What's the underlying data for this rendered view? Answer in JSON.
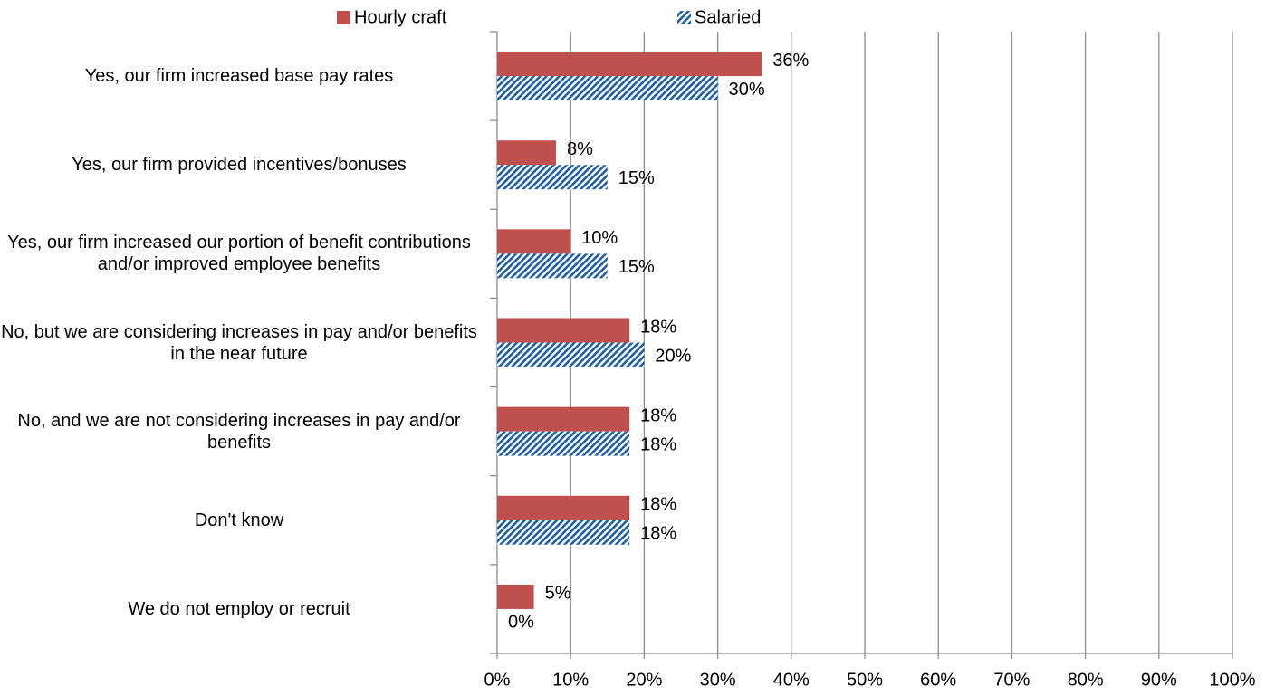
{
  "chart_data": {
    "type": "bar",
    "orientation": "horizontal",
    "categories": [
      "Yes, our firm increased base pay rates",
      "Yes, our firm provided incentives/bonuses",
      "Yes, our firm increased our portion of benefit contributions and/or improved employee benefits",
      "No, but we are considering increases in pay and/or benefits in the near future",
      "No, and we are not considering increases in pay and/or benefits",
      "Don't know",
      "We do not employ or recruit"
    ],
    "series": [
      {
        "name": "Hourly craft",
        "color": "#c0504d",
        "pattern": "solid",
        "values": [
          36,
          8,
          10,
          18,
          18,
          18,
          5
        ],
        "value_labels": [
          "36%",
          "8%",
          "10%",
          "18%",
          "18%",
          "18%",
          "5%"
        ]
      },
      {
        "name": "Salaried",
        "color": "#1f5fa8",
        "pattern": "hatch",
        "values": [
          30,
          15,
          15,
          20,
          18,
          18,
          0
        ],
        "value_labels": [
          "30%",
          "15%",
          "15%",
          "20%",
          "18%",
          "18%",
          "0%"
        ]
      }
    ],
    "xlim": [
      0,
      100
    ],
    "xticks": [
      {
        "value": 0,
        "label": "0%"
      },
      {
        "value": 10,
        "label": "10%"
      },
      {
        "value": 20,
        "label": "20%"
      },
      {
        "value": 30,
        "label": "30%"
      },
      {
        "value": 40,
        "label": "40%"
      },
      {
        "value": 50,
        "label": "50%"
      },
      {
        "value": 60,
        "label": "60%"
      },
      {
        "value": 70,
        "label": "70%"
      },
      {
        "value": 80,
        "label": "80%"
      },
      {
        "value": 90,
        "label": "90%"
      },
      {
        "value": 100,
        "label": "100%"
      }
    ],
    "grid": true,
    "legend": "top"
  }
}
